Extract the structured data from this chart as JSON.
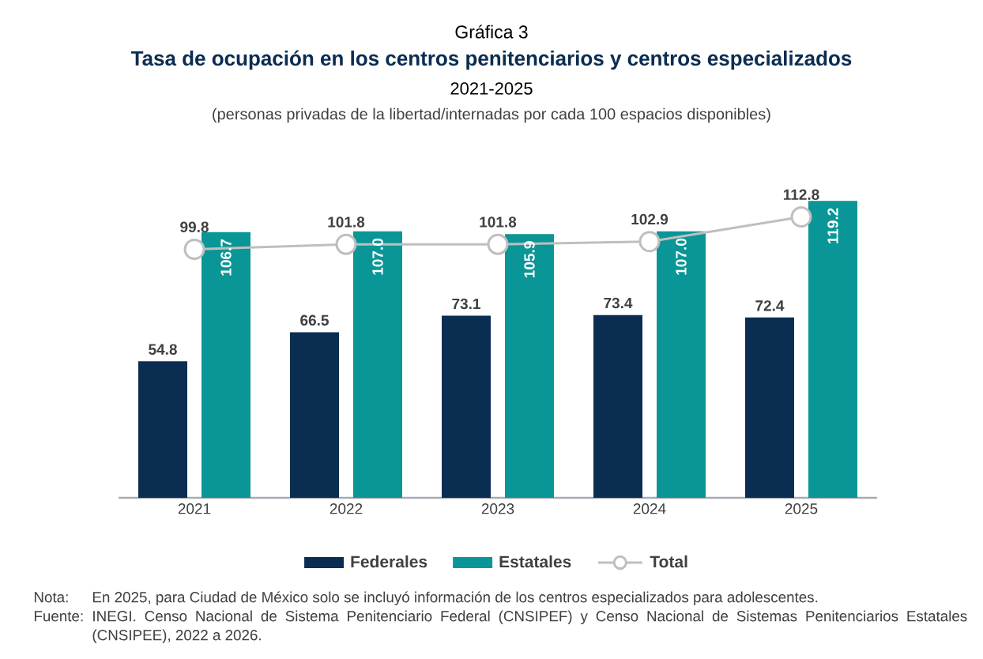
{
  "chart_data": {
    "type": "bar",
    "title": "Tasa de ocupación en los centros penitenciarios y centros especializados",
    "subtitle": "2021-2025",
    "annotations": [
      "Gráfica 3",
      "(personas privadas de la libertad/internadas por cada 100 espacios disponibles)",
      "Nota:",
      "En 2025, para Ciudad de México solo se incluyó información de los centros especializados para adolescentes.",
      "Fuente:",
      "INEGI. Censo Nacional de Sistema Penitenciario Federal (CNSIPEF) y Censo Nacional de Sistemas Penitenciarios Estatales (CNSIPEE), 2022 a 2026."
    ],
    "categories": [
      "2021",
      "2022",
      "2023",
      "2024",
      "2025"
    ],
    "series": [
      {
        "name": "Federales",
        "color": "#0b2d52",
        "values": [
          54.8,
          66.5,
          73.1,
          73.4,
          72.4
        ]
      },
      {
        "name": "Estatales",
        "color": "#0a9696",
        "values": [
          106.7,
          107.0,
          105.9,
          107.0,
          119.2
        ],
        "value_labels": [
          "106.7",
          "107.0",
          "105.9",
          "107.0",
          "119.2"
        ]
      },
      {
        "name": "Total",
        "type": "line",
        "color": "#bfbfbf",
        "marker": "circle",
        "line_style": "solid",
        "values": [
          99.8,
          101.8,
          101.8,
          102.9,
          112.8
        ]
      }
    ],
    "data_labels": true,
    "legend": "bottom"
  }
}
